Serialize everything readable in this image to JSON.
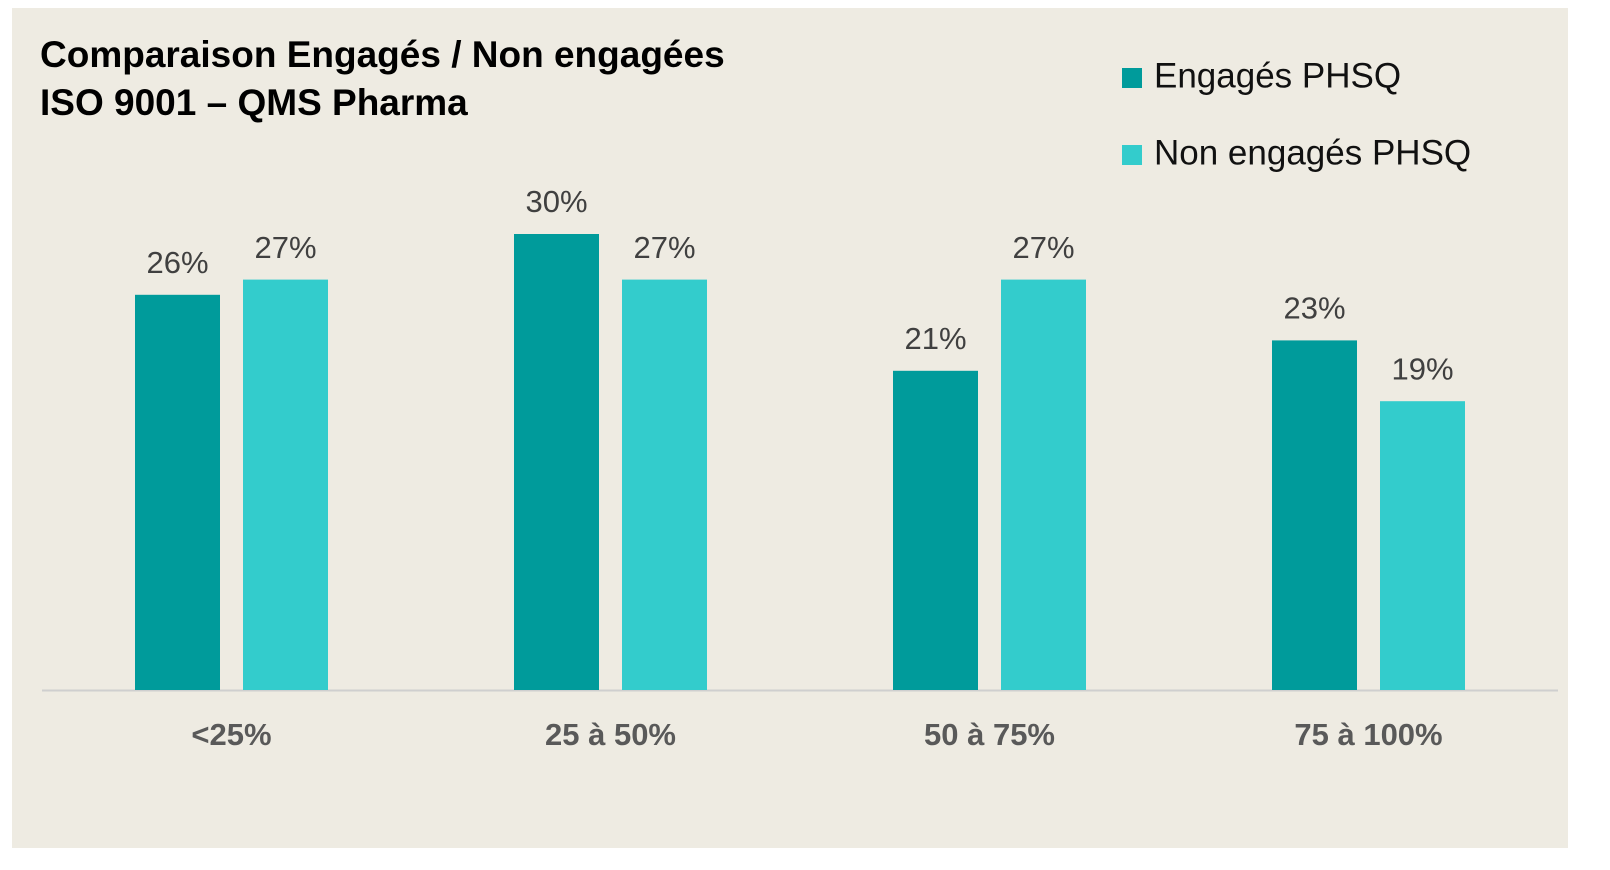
{
  "chart_data": {
    "type": "bar",
    "title": [
      "Comparaison Engagés / Non engagées",
      "ISO 9001 – QMS Pharma"
    ],
    "categories": [
      "<25%",
      "25 à 50%",
      "50 à 75%",
      "75 à 100%"
    ],
    "series": [
      {
        "name": "Engagés PHSQ",
        "color": "#009b9b",
        "values": [
          26,
          30,
          21,
          23
        ],
        "value_labels": [
          "26%",
          "30%",
          "21%",
          "23%"
        ]
      },
      {
        "name": "Non engagés PHSQ",
        "color": "#33cccc",
        "values": [
          27,
          27,
          27,
          19
        ],
        "value_labels": [
          "27%",
          "27%",
          "27%",
          "19%"
        ]
      }
    ],
    "legend": "top-right"
  }
}
